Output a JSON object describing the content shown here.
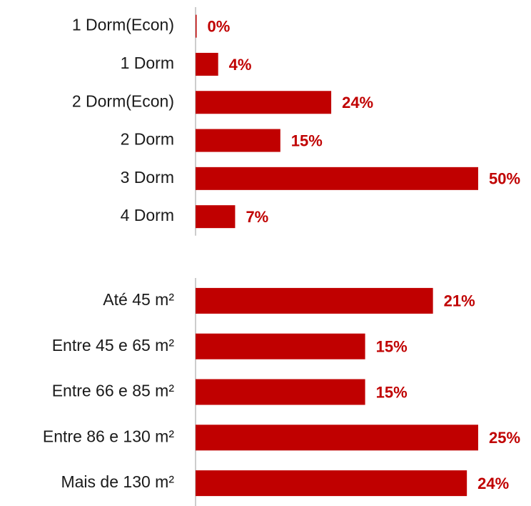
{
  "chart_data": [
    {
      "type": "bar",
      "orientation": "horizontal",
      "color": "#c00000",
      "categories": [
        "1 Dorm(Econ)",
        "1 Dorm",
        "2 Dorm(Econ)",
        "2 Dorm",
        "3 Dorm",
        "4 Dorm"
      ],
      "values": [
        0,
        4,
        24,
        15,
        50,
        7
      ],
      "value_labels": [
        "0%",
        "4%",
        "24%",
        "15%",
        "50%",
        "7%"
      ]
    },
    {
      "type": "bar",
      "orientation": "horizontal",
      "color": "#c00000",
      "categories": [
        "Até 45 m²",
        "Entre 45 e 65 m²",
        "Entre 66 e 85 m²",
        "Entre 86 e 130 m²",
        "Mais de 130 m²"
      ],
      "values": [
        21,
        15,
        15,
        25,
        24
      ],
      "value_labels": [
        "21%",
        "15%",
        "15%",
        "25%",
        "24%"
      ]
    }
  ]
}
